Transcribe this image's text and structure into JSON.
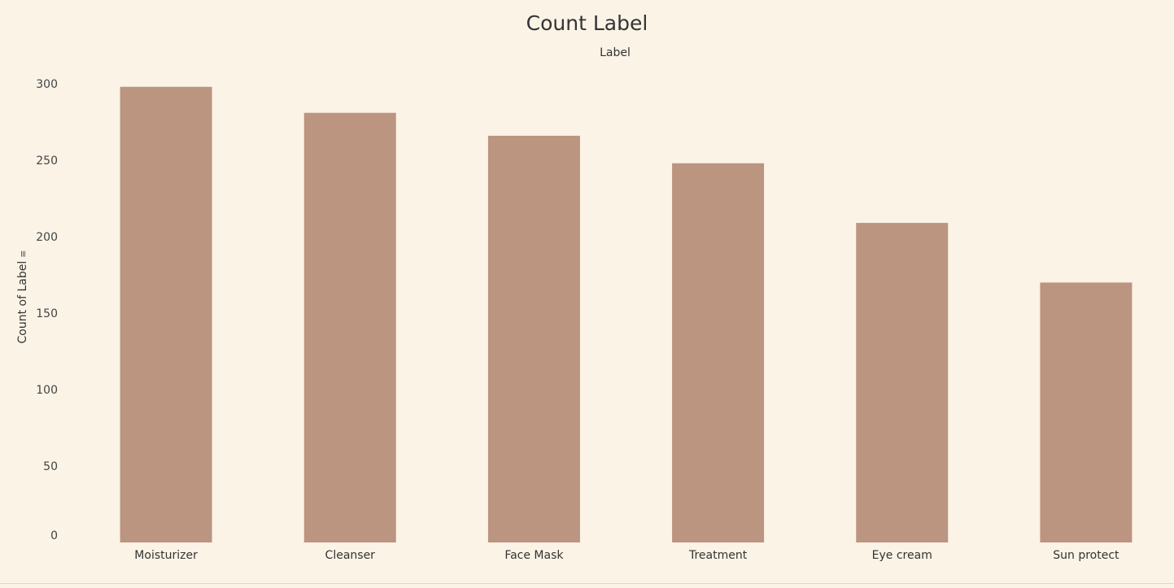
{
  "chart_data": {
    "type": "bar",
    "title": "Count Label",
    "column_header": "Label",
    "ylabel": "Count of Label",
    "categories": [
      "Moisturizer",
      "Cleanser",
      "Face Mask",
      "Treatment",
      "Eye cream",
      "Sun protect"
    ],
    "values": [
      298,
      281,
      266,
      248,
      209,
      170
    ],
    "yticks": [
      0,
      50,
      100,
      150,
      200,
      250,
      300
    ],
    "ylim": [
      0,
      300
    ],
    "grid": false,
    "legend": "none",
    "colors": {
      "bar": "#bb9580",
      "background": "#faf3e6"
    },
    "icons": {
      "ylabel_sort": "sort-descending-icon"
    }
  }
}
